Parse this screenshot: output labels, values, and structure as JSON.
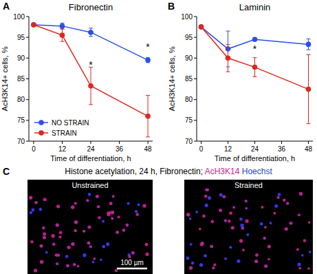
{
  "chart_data": [
    {
      "type": "line",
      "title": "Fibronectin",
      "x_label": "Time of differentiation, h",
      "y_label": "AcH3K14+ cells, %",
      "x": [
        0,
        12,
        24,
        48
      ],
      "xlim": [
        -2,
        50
      ],
      "xticks": [
        0,
        12,
        24,
        36,
        48
      ],
      "ylim": [
        70,
        100
      ],
      "yticks": [
        70,
        75,
        80,
        85,
        90,
        95,
        100
      ],
      "legend": "lower left",
      "marker": "circle",
      "series": [
        {
          "name": "NO STRAIN",
          "color": "#2b50e6",
          "values": [
            98,
            97.7,
            96.2,
            89.5
          ],
          "errors": [
            0.3,
            0.7,
            1.0,
            0.6
          ]
        },
        {
          "name": "STRAIN",
          "color": "#e0261e",
          "values": [
            98,
            95.5,
            83.3,
            76
          ],
          "errors": [
            0.3,
            1.5,
            4.5,
            5
          ]
        }
      ],
      "annotations": [
        {
          "text": "*",
          "x": 24,
          "y": 88.5
        },
        {
          "text": "*",
          "x": 48,
          "y": 92.8
        }
      ]
    },
    {
      "type": "line",
      "title": "Laminin",
      "x_label": "Time of differentiation, h",
      "y_label": "AcH3K14+ cells, %",
      "x": [
        0,
        12,
        24,
        48
      ],
      "xlim": [
        -2,
        50
      ],
      "xticks": [
        0,
        12,
        24,
        36,
        48
      ],
      "ylim": [
        70,
        100
      ],
      "yticks": [
        70,
        75,
        80,
        85,
        90,
        95,
        100
      ],
      "marker": "circle",
      "series": [
        {
          "name": "NO STRAIN",
          "color": "#2b50e6",
          "values": [
            97.5,
            92.2,
            94.5,
            93.3
          ],
          "errors": [
            0.3,
            4.3,
            0.3,
            1.3
          ]
        },
        {
          "name": "STRAIN",
          "color": "#e0261e",
          "values": [
            97.5,
            90,
            87.8,
            82.5
          ],
          "errors": [
            0.3,
            3.3,
            2.3,
            8.3
          ]
        }
      ],
      "annotations": [
        {
          "text": "*",
          "x": 24,
          "y": 92.3
        }
      ]
    }
  ],
  "panel_labels": [
    "A",
    "B",
    "C"
  ],
  "panel_c": {
    "title_parts": [
      {
        "text": "Histone acetylation, 24 h, Fibronectin;",
        "color": "#000000"
      },
      {
        "text": "AcH3K14",
        "color": "#d81b8c"
      },
      {
        "text": "Hoechst",
        "color": "#2b3fd6"
      }
    ],
    "images": [
      "Unstrained",
      "Strained"
    ],
    "scale_bar": "100 µm"
  }
}
